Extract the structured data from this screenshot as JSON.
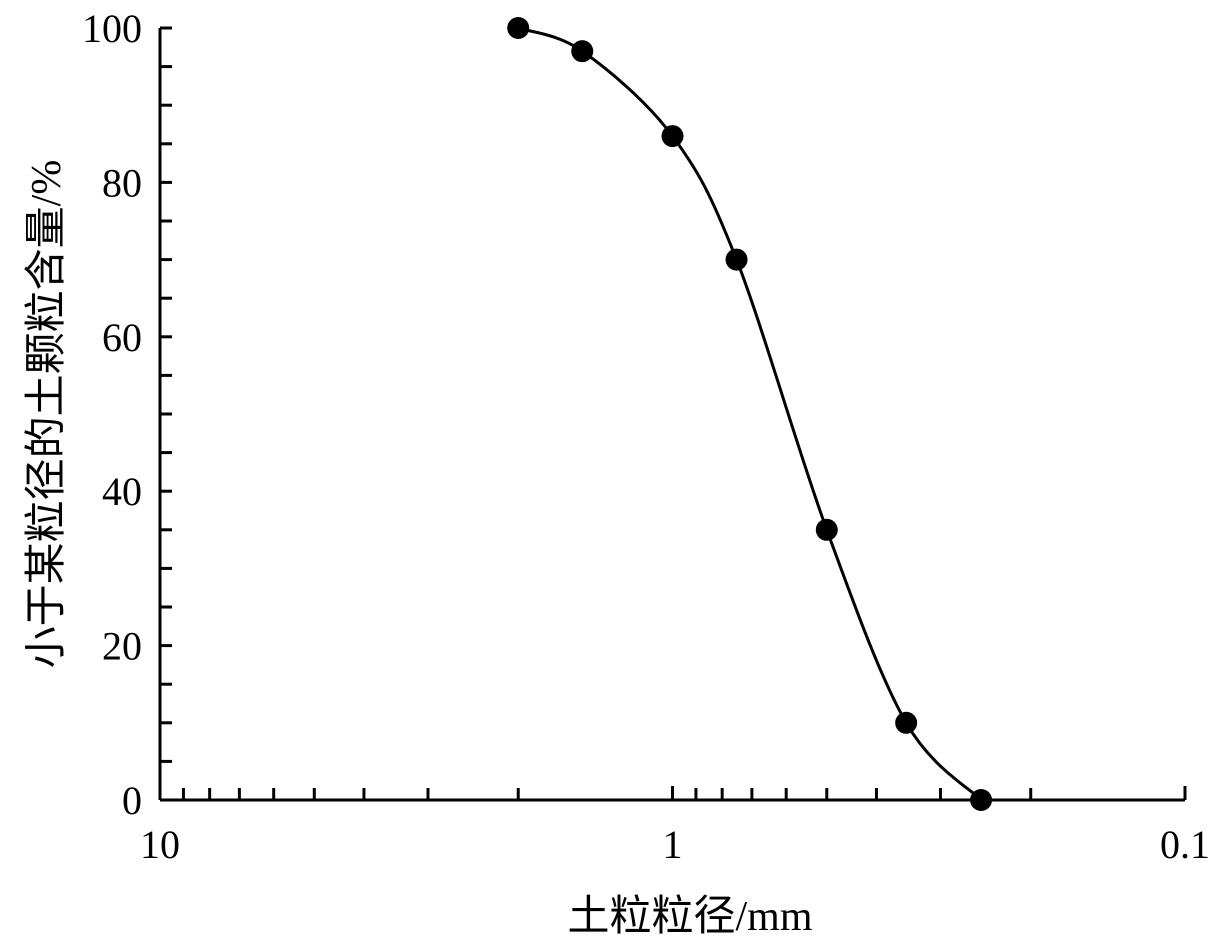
{
  "chart_data": {
    "type": "line",
    "x_label": "土粒粒径/mm",
    "y_label": "小于某粒径的土颗粒含量/%",
    "x": [
      2,
      1.5,
      1,
      0.75,
      0.5,
      0.35,
      0.25
    ],
    "series": [
      {
        "color": "#000000",
        "values": [
          100,
          97,
          86,
          70,
          35,
          10,
          0
        ]
      }
    ],
    "xlim": [
      10,
      0.1
    ],
    "xscale": "log",
    "xticks": [
      10,
      1,
      0.1
    ],
    "xminorticks": [
      9,
      8,
      7,
      6,
      5,
      4,
      3,
      2,
      0.9,
      0.8,
      0.7,
      0.6,
      0.5,
      0.4,
      0.3,
      0.2
    ],
    "ylim": [
      0,
      100
    ],
    "yticks": [
      0,
      20,
      40,
      60,
      80,
      100
    ],
    "yminorticks": [
      5,
      10,
      15,
      25,
      30,
      35,
      45,
      50,
      55,
      65,
      70,
      75,
      85,
      90,
      95
    ],
    "markers": true
  }
}
